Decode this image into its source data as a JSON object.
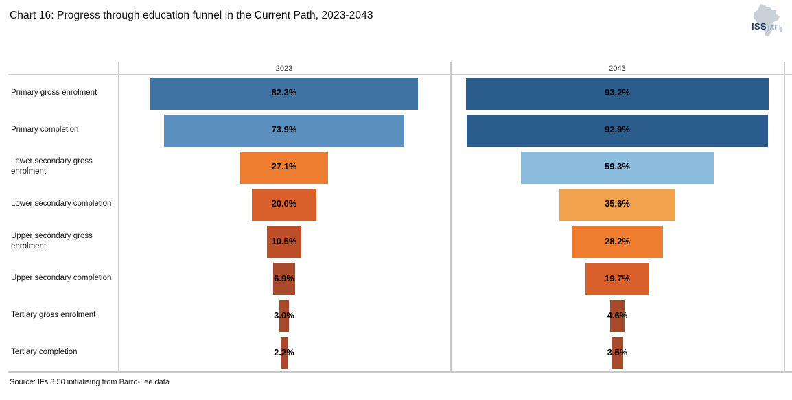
{
  "title": "Chart 16: Progress through education funnel in the Current Path, 2023-2043",
  "logo": {
    "iss": "ISS",
    "separator": "|",
    "afi": "AFI",
    "iss_color": "#1f3864",
    "afi_color": "#7396bd",
    "map_color": "#c9d2d9"
  },
  "source": "Source: IFs 8.50 initialising from Barro-Lee data",
  "chart_data": {
    "type": "bar",
    "subtype": "centered-funnel",
    "title": "Chart 16: Progress through education funnel in the Current Path, 2023-2043",
    "categories": [
      "Primary gross enrolment",
      "Primary completion",
      "Lower secondary gross enrolment",
      "Lower secondary completion",
      "Upper secondary gross enrolment",
      "Upper secondary completion",
      "Tertiary gross enrolment",
      "Tertiary completion"
    ],
    "series": [
      {
        "name": "2023",
        "values": [
          82.3,
          73.9,
          27.1,
          20.0,
          10.5,
          6.9,
          3.0,
          2.2
        ],
        "labels": [
          "82.3%",
          "73.9%",
          "27.1%",
          "20.0%",
          "10.5%",
          "6.9%",
          "3.0%",
          "2.2%"
        ],
        "colors": [
          "#3f73a3",
          "#5b8fbe",
          "#ee7d30",
          "#d9602b",
          "#bc4f27",
          "#a8492b",
          "#a8492b",
          "#a8492b"
        ]
      },
      {
        "name": "2043",
        "values": [
          93.2,
          92.9,
          59.3,
          35.6,
          28.2,
          19.7,
          4.6,
          3.5
        ],
        "labels": [
          "93.2%",
          "92.9%",
          "59.3%",
          "35.6%",
          "28.2%",
          "19.7%",
          "4.6%",
          "3.5%"
        ],
        "colors": [
          "#2a5c8c",
          "#2a5c8c",
          "#8bbcde",
          "#f2a24c",
          "#ee7d30",
          "#d9602b",
          "#a8492b",
          "#a8492b"
        ]
      }
    ],
    "value_unit": "%",
    "axis_range": [
      0,
      100
    ],
    "grid": false,
    "legend": "none",
    "line_color": "#c8c8c8",
    "value_labels_inside_bars": true
  }
}
